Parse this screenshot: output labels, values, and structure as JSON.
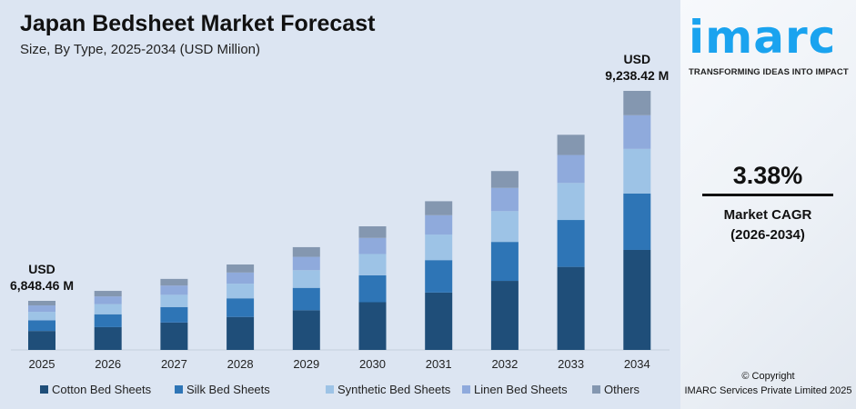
{
  "header": {
    "title": "Japan Bedsheet Market Forecast",
    "subtitle": "Size, By Type, 2025-2034 (USD Million)"
  },
  "brand": {
    "logo": "imarc",
    "tagline": "TRANSFORMING IDEAS INTO IMPACT",
    "color": "#1aa3ef"
  },
  "kpi": {
    "value": "3.38%",
    "label1": "Market CAGR",
    "label2": "(2026-2034)"
  },
  "footer": {
    "copyright": "© Copyright",
    "company": "IMARC Services Private Limited 2025"
  },
  "chart_data": {
    "type": "bar",
    "stacked": true,
    "title": "Japan Bedsheet Market Forecast",
    "subtitle": "Size, By Type, 2025-2034 (USD Million)",
    "categories": [
      "2025",
      "2026",
      "2027",
      "2028",
      "2029",
      "2030",
      "2031",
      "2032",
      "2033",
      "2034"
    ],
    "totals": [
      6848.46,
      7079.9,
      7319.2,
      7566.6,
      7822.4,
      8086.8,
      8360.1,
      8642.7,
      8934.8,
      9238.42
    ],
    "annotations": [
      {
        "category": "2025",
        "line1": "USD",
        "line2": "6,848.46 M"
      },
      {
        "category": "2034",
        "line1": "USD",
        "line2": "9,238.42 M"
      }
    ],
    "series": [
      {
        "name": "Cotton Bed Sheets",
        "color": "#1f4e79",
        "values": [
          2643.5,
          2732.8,
          2825.2,
          2920.7,
          3019.4,
          3121.5,
          3227.0,
          3336.1,
          3448.8,
          3566.0
        ]
      },
      {
        "name": "Silk Bed Sheets",
        "color": "#2e75b6",
        "values": [
          1493.0,
          1543.4,
          1595.6,
          1649.5,
          1705.3,
          1762.9,
          1822.5,
          1884.1,
          1947.8,
          2014.0
        ]
      },
      {
        "name": "Synthetic Bed Sheets",
        "color": "#9dc3e6",
        "values": [
          1177.9,
          1217.7,
          1258.9,
          1301.5,
          1345.5,
          1390.9,
          1437.9,
          1486.5,
          1536.8,
          1589.0
        ]
      },
      {
        "name": "Linen Bed Sheets",
        "color": "#8faadc",
        "values": [
          890.3,
          920.4,
          951.5,
          983.7,
          1016.9,
          1051.3,
          1086.8,
          1123.6,
          1161.5,
          1201.0
        ]
      },
      {
        "name": "Others",
        "color": "#8497b0",
        "values": [
          643.8,
          665.6,
          688.0,
          711.2,
          735.3,
          760.2,
          785.9,
          812.4,
          839.9,
          868.42
        ]
      }
    ],
    "legend": "bottom",
    "grid": false
  }
}
